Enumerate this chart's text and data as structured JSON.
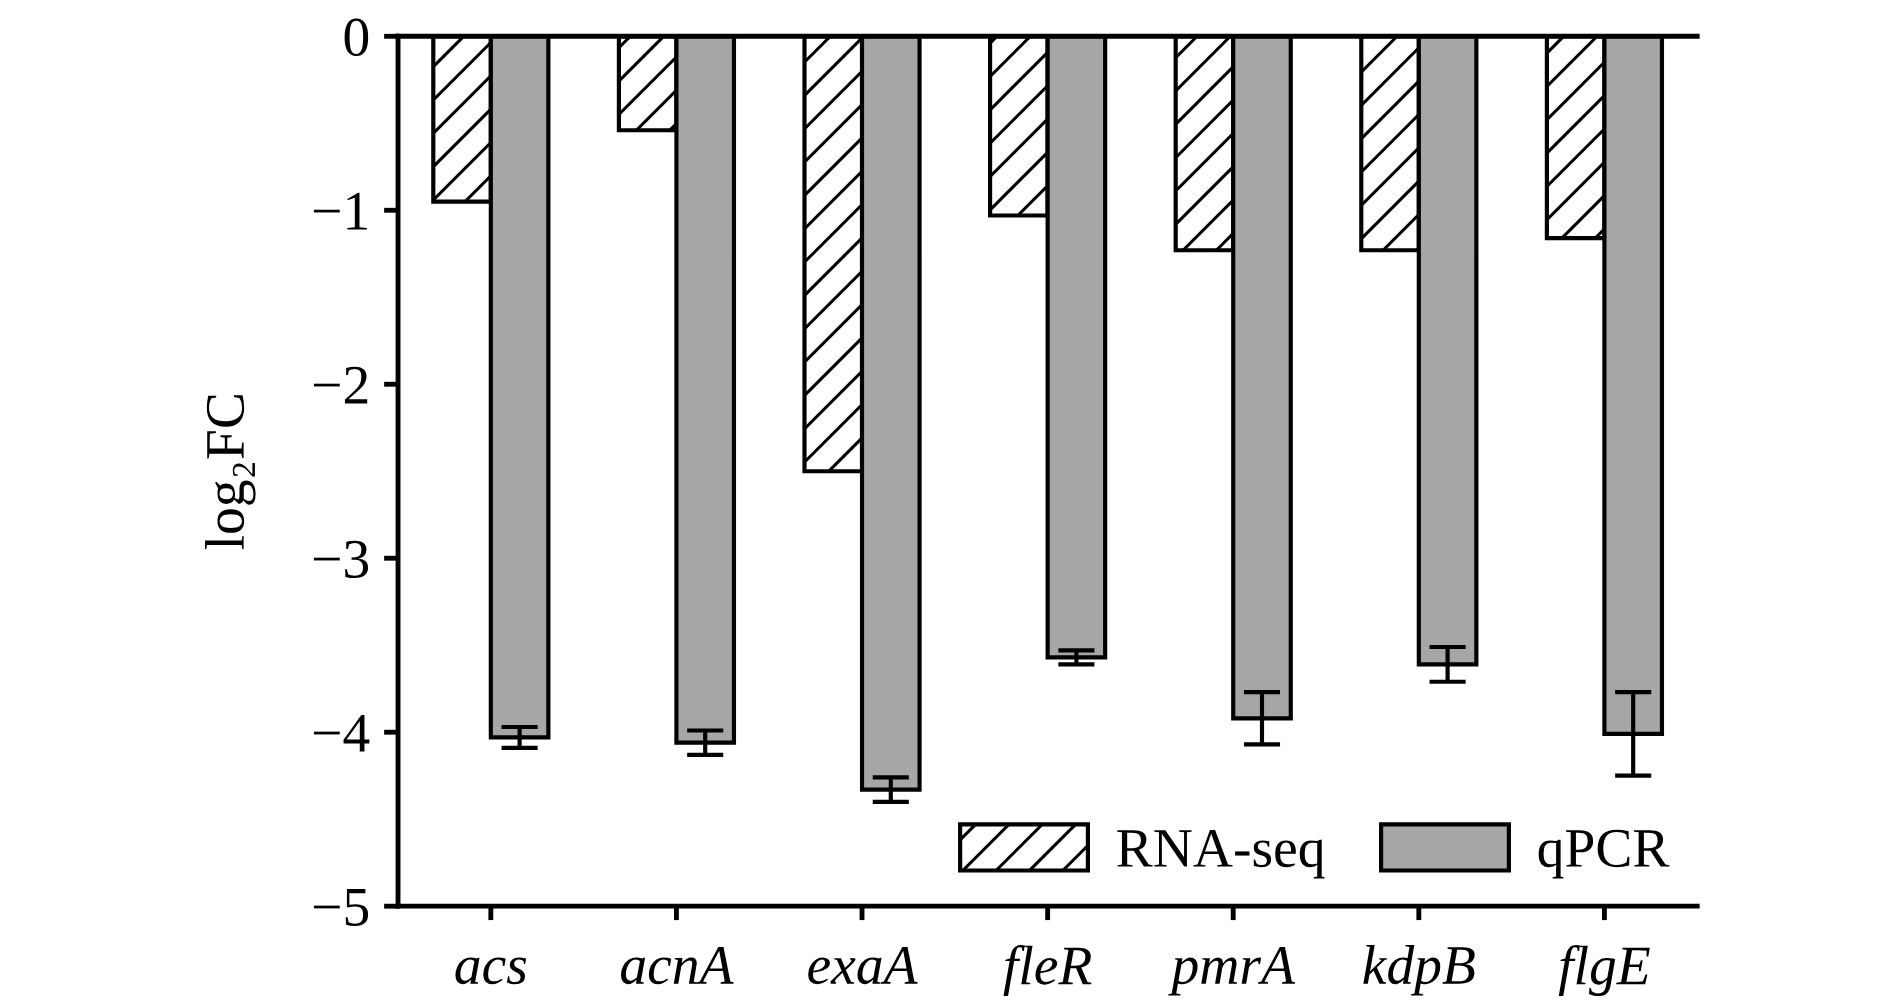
{
  "chart_data": {
    "type": "bar",
    "ylabel": "log₂FC",
    "categories": [
      "acs",
      "acnA",
      "exaA",
      "fleR",
      "pmrA",
      "kdpB",
      "flgE"
    ],
    "series": [
      {
        "name": "RNA-seq",
        "color": "#000000",
        "values": [
          -0.95,
          -0.54,
          -2.5,
          -1.03,
          -1.23,
          -1.23,
          -1.16
        ]
      },
      {
        "name": "qPCR",
        "color": "#a6a6a6",
        "values": [
          -4.03,
          -4.06,
          -4.33,
          -3.57,
          -3.92,
          -3.61,
          -4.01
        ],
        "errors": [
          0.06,
          0.07,
          0.07,
          0.04,
          0.15,
          0.1,
          0.24
        ]
      }
    ],
    "ylim": [
      -5,
      0
    ],
    "yticks": [
      {
        "value": -5,
        "label": "−5"
      },
      {
        "value": -4,
        "label": "−4"
      },
      {
        "value": -3,
        "label": "−3"
      },
      {
        "value": -2,
        "label": "−2"
      },
      {
        "value": -1,
        "label": "−1"
      },
      0
    ],
    "grid": false,
    "legend": "bottom right"
  }
}
